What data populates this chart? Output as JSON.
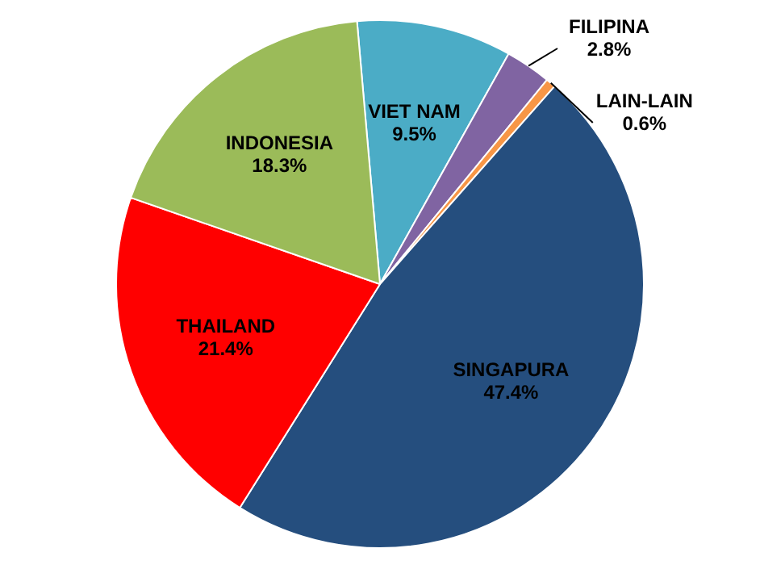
{
  "chart_data": {
    "type": "pie",
    "categories": [
      "VIET NAM",
      "FILIPINA",
      "LAIN-LAIN",
      "SINGAPURA",
      "THAILAND",
      "INDONESIA"
    ],
    "values": [
      9.5,
      2.8,
      0.6,
      47.4,
      21.4,
      18.3
    ],
    "colors": [
      "#4bacc6",
      "#8064a2",
      "#f79646",
      "#254e7e",
      "#ff0000",
      "#9bbb59"
    ],
    "value_labels": [
      "9.5%",
      "2.8%",
      "0.6%",
      "47.4%",
      "21.4%",
      "18.3%"
    ],
    "legend": false
  }
}
